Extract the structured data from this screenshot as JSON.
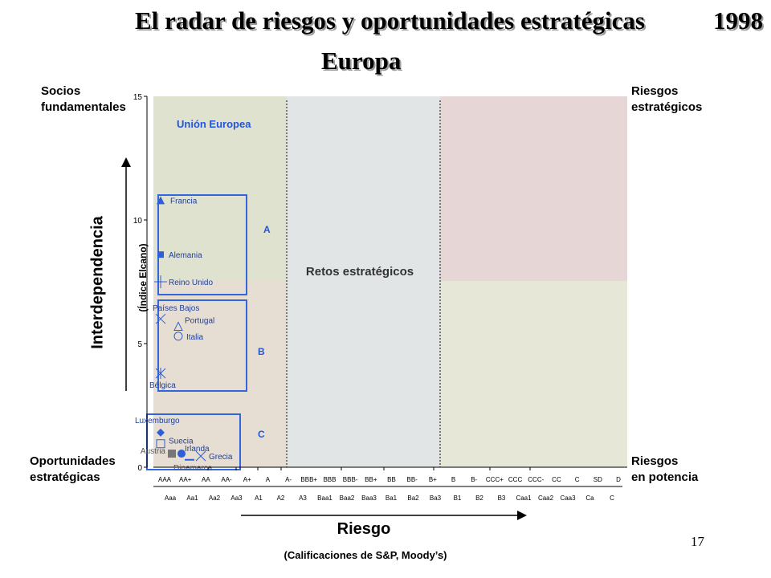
{
  "slide": {
    "title": "El radar de riesgos y oportunidades estratégicas",
    "year": "1998",
    "subtitle": "Europa",
    "page_number": "17",
    "corners": {
      "top_left": "Socios\nfundamentales",
      "top_right": "Riesgos\nestratégicos",
      "bottom_left": "Oportunidades\nestratégicas",
      "bottom_right": "Riesgos\nen potencia"
    }
  },
  "chart_data": {
    "type": "scatter",
    "ylabel": "Interdependencia",
    "ylabel_sub": "(Índice Elcano)",
    "xlabel": "Riesgo",
    "xlabel_sub": "(Calificaciones de S&P, Moody’s)",
    "ylim": [
      0,
      15
    ],
    "yticks": [
      0,
      5,
      10,
      15
    ],
    "x_ticks_sp": [
      "AAA",
      "AA+",
      "AA",
      "AA-",
      "A+",
      "A",
      "A-",
      "BBB+",
      "BBB",
      "BBB-",
      "BB+",
      "BB",
      "BB-",
      "B+",
      "B",
      "B-",
      "CCC+",
      "CCC",
      "CCC-",
      "CC",
      "C",
      "SD",
      "D"
    ],
    "x_ticks_moodys": [
      "Aaa",
      "Aa1",
      "Aa2",
      "Aa3",
      "A1",
      "A2",
      "A3",
      "Baa1",
      "Baa2",
      "Baa3",
      "Ba1",
      "Ba2",
      "Ba3",
      "B1",
      "B2",
      "B3",
      "Caa1",
      "Caa2",
      "Caa3",
      "Ca",
      "C"
    ],
    "region_labels": {
      "eu": "Unión Europea",
      "center": "Retos estratégicos",
      "group_a": "A",
      "group_b": "B",
      "group_c": "C"
    },
    "series": [
      {
        "name": "Francia",
        "marker": "triangle",
        "rating": "AAA",
        "y": 10.8
      },
      {
        "name": "Alemania",
        "marker": "square",
        "rating": "AAA",
        "y": 8.6
      },
      {
        "name": "Reino Unido",
        "marker": "plus",
        "rating": "AAA",
        "y": 7.5
      },
      {
        "name": "Países Bajos",
        "marker": "x",
        "rating": "AAA",
        "y": 6.0
      },
      {
        "name": "Portugal",
        "marker": "triangle-open",
        "rating": "AA",
        "y": 5.7
      },
      {
        "name": "Italia",
        "marker": "circle-open",
        "rating": "AA",
        "y": 5.3
      },
      {
        "name": "Bélgica",
        "marker": "star",
        "rating": "AAA",
        "y": 3.8
      },
      {
        "name": "Luxemburgo",
        "marker": "diamond",
        "rating": "AAA",
        "y": 1.4
      },
      {
        "name": "Suecia",
        "marker": "square-open",
        "rating": "AAA",
        "y": 0.95
      },
      {
        "name": "Irlanda",
        "marker": "circle",
        "rating": "AA+",
        "y": 0.55
      },
      {
        "name": "Grecia",
        "marker": "x",
        "rating": "AA",
        "y": 0.45
      },
      {
        "name": "Austria",
        "marker": "square-gray",
        "rating": "AAA",
        "y": 0.55
      },
      {
        "name": "Dinamarca",
        "marker": "dash",
        "rating": "AA+",
        "y": 0.3
      }
    ]
  }
}
